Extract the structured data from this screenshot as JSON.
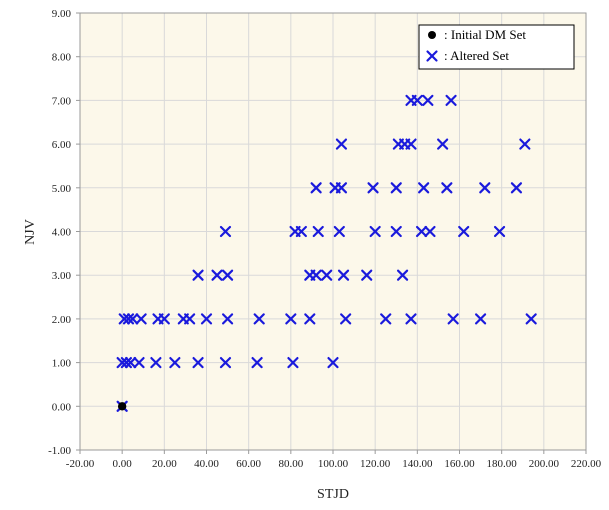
{
  "chart_data": {
    "type": "scatter",
    "title": "",
    "xlabel": "STJD",
    "ylabel": "NJV",
    "xlim": [
      -20,
      220
    ],
    "ylim": [
      -1,
      9
    ],
    "x_ticks": [
      "-20.00",
      "0.00",
      "20.00",
      "40.00",
      "60.00",
      "80.00",
      "100.00",
      "120.00",
      "140.00",
      "160.00",
      "180.00",
      "200.00",
      "220.00"
    ],
    "y_ticks": [
      "-1.00",
      "0.00",
      "1.00",
      "2.00",
      "3.00",
      "4.00",
      "5.00",
      "6.00",
      "7.00",
      "8.00",
      "9.00"
    ],
    "grid": true,
    "legend_position": "top-right",
    "colors": {
      "plot_background": "#fcf8ea",
      "grid": "#d9d9d9",
      "altered": "#1a1adc",
      "initial": "#000000"
    },
    "series": [
      {
        "name": ": Initial  DM Set",
        "marker": "dot",
        "points": [
          [
            0,
            0
          ]
        ]
      },
      {
        "name": ": Altered Set",
        "marker": "x",
        "points": [
          [
            0,
            0
          ],
          [
            0,
            1
          ],
          [
            2,
            1
          ],
          [
            4,
            1
          ],
          [
            8,
            1
          ],
          [
            16,
            1
          ],
          [
            25,
            1
          ],
          [
            36,
            1
          ],
          [
            49,
            1
          ],
          [
            64,
            1
          ],
          [
            81,
            1
          ],
          [
            100,
            1
          ],
          [
            1,
            2
          ],
          [
            3,
            2
          ],
          [
            5,
            2
          ],
          [
            9,
            2
          ],
          [
            17,
            2
          ],
          [
            20,
            2
          ],
          [
            29,
            2
          ],
          [
            32,
            2
          ],
          [
            40,
            2
          ],
          [
            50,
            2
          ],
          [
            65,
            2
          ],
          [
            80,
            2
          ],
          [
            89,
            2
          ],
          [
            106,
            2
          ],
          [
            125,
            2
          ],
          [
            137,
            2
          ],
          [
            157,
            2
          ],
          [
            170,
            2
          ],
          [
            194,
            2
          ],
          [
            36,
            3
          ],
          [
            45,
            3
          ],
          [
            50,
            3
          ],
          [
            89,
            3
          ],
          [
            92,
            3
          ],
          [
            97,
            3
          ],
          [
            105,
            3
          ],
          [
            116,
            3
          ],
          [
            133,
            3
          ],
          [
            49,
            4
          ],
          [
            82,
            4
          ],
          [
            85,
            4
          ],
          [
            93,
            4
          ],
          [
            103,
            4
          ],
          [
            120,
            4
          ],
          [
            130,
            4
          ],
          [
            142,
            4
          ],
          [
            146,
            4
          ],
          [
            162,
            4
          ],
          [
            179,
            4
          ],
          [
            92,
            5
          ],
          [
            101,
            5
          ],
          [
            104,
            5
          ],
          [
            119,
            5
          ],
          [
            130,
            5
          ],
          [
            143,
            5
          ],
          [
            154,
            5
          ],
          [
            172,
            5
          ],
          [
            187,
            5
          ],
          [
            104,
            6
          ],
          [
            131,
            6
          ],
          [
            134,
            6
          ],
          [
            137,
            6
          ],
          [
            152,
            6
          ],
          [
            191,
            6
          ],
          [
            137,
            7
          ],
          [
            140,
            7
          ],
          [
            145,
            7
          ],
          [
            156,
            7
          ]
        ]
      }
    ]
  }
}
